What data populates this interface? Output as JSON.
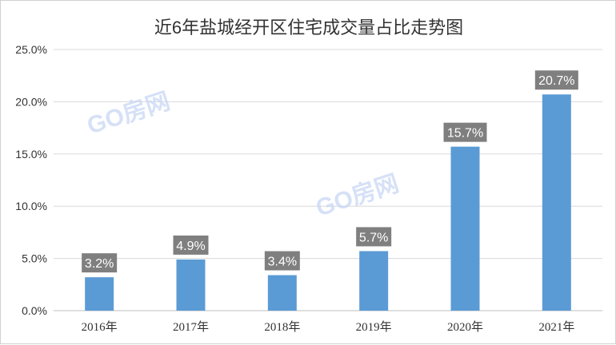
{
  "chart_data": {
    "type": "bar",
    "title": "近6年盐城经开区住宅成交量占比走势图",
    "categories": [
      "2016年",
      "2017年",
      "2018年",
      "2019年",
      "2020年",
      "2021年"
    ],
    "values": [
      3.2,
      4.9,
      3.4,
      5.7,
      15.7,
      20.7
    ],
    "data_labels": [
      "3.2%",
      "4.9%",
      "3.4%",
      "5.7%",
      "15.7%",
      "20.7%"
    ],
    "y_ticks": [
      "0.0%",
      "5.0%",
      "10.0%",
      "15.0%",
      "20.0%",
      "25.0%"
    ],
    "ylim": [
      0,
      25
    ],
    "xlabel": "",
    "ylabel": "",
    "grid": true,
    "legend": "none",
    "bar_color": "#5b9bd5",
    "label_bg_color": "#7f7f7f"
  },
  "watermark": {
    "text": "GO房网"
  }
}
